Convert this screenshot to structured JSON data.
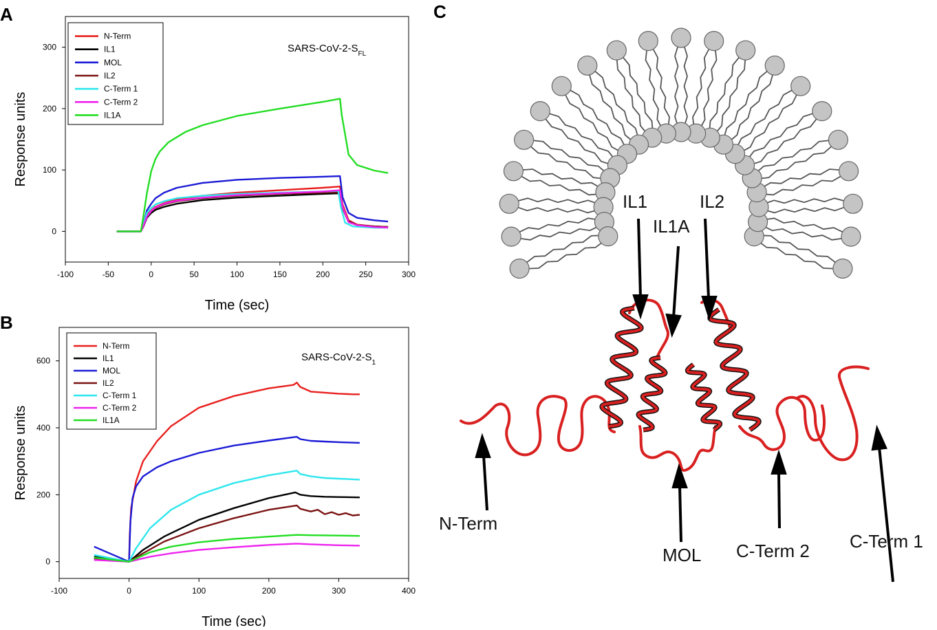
{
  "panels": {
    "a": {
      "letter": "A",
      "annotation": "SARS-CoV-2-S",
      "annotation_sub": "FL"
    },
    "b": {
      "letter": "B",
      "annotation": "SARS-CoV-2-S",
      "annotation_sub": "1"
    },
    "c": {
      "letter": "C"
    }
  },
  "colors": {
    "N-Term": "#e8201e",
    "IL1": "#000000",
    "MOL": "#1a1ad6",
    "IL2": "#7a1212",
    "C-Term 1": "#2ee6ee",
    "C-Term 2": "#ee22ee",
    "IL1A": "#22dd22",
    "lipid_head": "#c4c4c4",
    "peptide": "#d92020"
  },
  "chart_data": [
    {
      "type": "line",
      "panel": "A",
      "annotation": "SARS-CoV-2-S_FL",
      "xlabel": "Time (sec)",
      "ylabel": "Response units",
      "xlim": [
        -100,
        300
      ],
      "ylim": [
        -50,
        350
      ],
      "xticks": [
        -100,
        -50,
        0,
        50,
        100,
        150,
        200,
        250,
        300
      ],
      "yticks": [
        0,
        100,
        200,
        300
      ],
      "grid": false,
      "legend_position": "top-left",
      "series": [
        {
          "name": "N-Term",
          "x": [
            -40,
            -12,
            -9,
            -5,
            0,
            5,
            15,
            30,
            60,
            100,
            150,
            200,
            220,
            223,
            230,
            240,
            260,
            276
          ],
          "y": [
            0,
            0,
            10,
            26,
            34,
            40,
            46,
            52,
            58,
            63,
            67,
            71,
            73,
            44,
            18,
            11,
            8,
            7
          ]
        },
        {
          "name": "IL1",
          "x": [
            -40,
            -12,
            -9,
            -5,
            0,
            5,
            15,
            30,
            60,
            100,
            150,
            200,
            220,
            223,
            230,
            240,
            260,
            276
          ],
          "y": [
            0,
            0,
            8,
            22,
            30,
            35,
            40,
            45,
            51,
            55,
            58,
            61,
            62,
            38,
            16,
            10,
            8,
            7
          ]
        },
        {
          "name": "MOL",
          "x": [
            -40,
            -12,
            -9,
            -5,
            0,
            5,
            15,
            30,
            60,
            100,
            150,
            200,
            220,
            223,
            230,
            240,
            260,
            276
          ],
          "y": [
            0,
            0,
            12,
            34,
            45,
            54,
            63,
            71,
            79,
            84,
            87,
            89,
            90,
            56,
            30,
            22,
            18,
            16
          ]
        },
        {
          "name": "IL2",
          "x": [
            -40,
            -12,
            -9,
            -5,
            0,
            5,
            15,
            30,
            60,
            100,
            150,
            200,
            220,
            223,
            230,
            240,
            260,
            276
          ],
          "y": [
            0,
            0,
            9,
            24,
            33,
            38,
            44,
            49,
            54,
            58,
            61,
            63,
            64,
            38,
            15,
            10,
            8,
            7
          ]
        },
        {
          "name": "C-Term 1",
          "x": [
            -40,
            -12,
            -9,
            -5,
            0,
            5,
            15,
            30,
            60,
            100,
            150,
            200,
            218,
            221,
            226,
            235,
            260,
            276
          ],
          "y": [
            0,
            0,
            12,
            30,
            38,
            44,
            49,
            54,
            58,
            61,
            63,
            65,
            66,
            40,
            14,
            8,
            6,
            6
          ]
        },
        {
          "name": "C-Term 2",
          "x": [
            -40,
            -12,
            -9,
            -5,
            0,
            5,
            15,
            30,
            60,
            100,
            150,
            200,
            220,
            223,
            230,
            240,
            260,
            276
          ],
          "y": [
            0,
            0,
            9,
            24,
            33,
            39,
            45,
            50,
            55,
            59,
            62,
            65,
            67,
            40,
            15,
            10,
            7,
            6
          ]
        },
        {
          "name": "IL1A",
          "x": [
            -40,
            -12,
            -9,
            -5,
            0,
            5,
            10,
            20,
            40,
            60,
            100,
            150,
            200,
            220,
            222,
            230,
            240,
            260,
            276
          ],
          "y": [
            0,
            0,
            25,
            62,
            98,
            118,
            130,
            145,
            162,
            173,
            188,
            200,
            211,
            216,
            190,
            125,
            108,
            99,
            95
          ]
        }
      ]
    },
    {
      "type": "line",
      "panel": "B",
      "annotation": "SARS-CoV-2-S_1",
      "xlabel": "Time (sec)",
      "ylabel": "Response units",
      "xlim": [
        -100,
        400
      ],
      "ylim": [
        -50,
        700
      ],
      "xticks": [
        -100,
        0,
        100,
        200,
        300,
        400
      ],
      "yticks": [
        0,
        200,
        400,
        600
      ],
      "grid": false,
      "legend_position": "top-left",
      "series": [
        {
          "name": "N-Term",
          "x": [
            -50,
            0,
            1,
            3,
            10,
            20,
            40,
            60,
            100,
            150,
            200,
            235,
            240,
            245,
            260,
            280,
            300,
            320,
            330
          ],
          "y": [
            10,
            0,
            80,
            160,
            240,
            300,
            360,
            405,
            460,
            495,
            518,
            528,
            535,
            522,
            508,
            505,
            502,
            500,
            500
          ]
        },
        {
          "name": "IL1",
          "x": [
            -50,
            0,
            20,
            50,
            100,
            150,
            200,
            238,
            245,
            260,
            280,
            300,
            330
          ],
          "y": [
            15,
            0,
            35,
            75,
            125,
            160,
            190,
            207,
            200,
            196,
            194,
            193,
            192
          ]
        },
        {
          "name": "MOL",
          "x": [
            -50,
            0,
            2,
            5,
            10,
            20,
            40,
            60,
            100,
            150,
            200,
            240,
            245,
            260,
            280,
            300,
            330
          ],
          "y": [
            45,
            0,
            120,
            190,
            225,
            255,
            282,
            300,
            325,
            347,
            362,
            373,
            366,
            361,
            359,
            357,
            355
          ]
        },
        {
          "name": "IL2",
          "x": [
            -50,
            0,
            20,
            50,
            100,
            150,
            200,
            240,
            245,
            260,
            270,
            280,
            290,
            300,
            310,
            320,
            330
          ],
          "y": [
            10,
            0,
            25,
            60,
            100,
            130,
            155,
            168,
            158,
            150,
            155,
            142,
            148,
            140,
            145,
            138,
            140
          ]
        },
        {
          "name": "C-Term 1",
          "x": [
            -50,
            0,
            10,
            30,
            60,
            100,
            150,
            200,
            240,
            245,
            260,
            280,
            300,
            320,
            330
          ],
          "y": [
            20,
            0,
            40,
            100,
            155,
            200,
            235,
            258,
            272,
            262,
            255,
            250,
            248,
            246,
            245
          ]
        },
        {
          "name": "C-Term 2",
          "x": [
            -50,
            0,
            30,
            60,
            100,
            150,
            200,
            240,
            260,
            300,
            330
          ],
          "y": [
            5,
            0,
            15,
            25,
            35,
            43,
            50,
            54,
            52,
            49,
            48
          ]
        },
        {
          "name": "IL1A",
          "x": [
            -50,
            0,
            30,
            60,
            100,
            150,
            200,
            240,
            260,
            300,
            330
          ],
          "y": [
            12,
            0,
            28,
            45,
            58,
            68,
            75,
            80,
            79,
            78,
            77
          ]
        }
      ]
    }
  ],
  "diagram": {
    "labels": {
      "il1": "IL1",
      "il2": "IL2",
      "il1a": "IL1A",
      "nterm": "N-Term",
      "mol": "MOL",
      "cterm2": "C-Term 2",
      "cterm1": "C-Term 1"
    }
  }
}
